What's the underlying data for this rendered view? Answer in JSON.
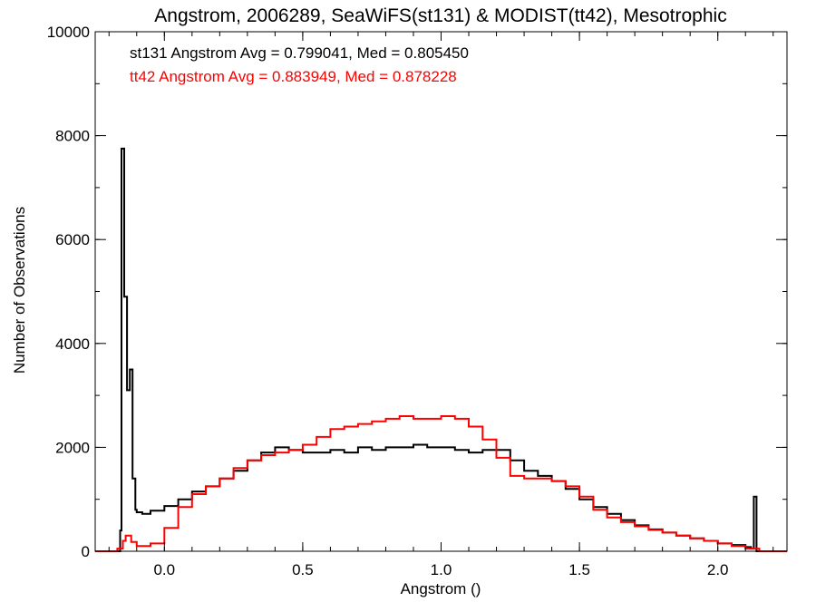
{
  "chart_data": {
    "type": "line",
    "title": "Angstrom, 2006289, SeaWiFS(st131) & MODIST(tt42), Mesotrophic",
    "xlabel": "Angstrom ()",
    "ylabel": "Number of Observations",
    "xlim": [
      -0.25,
      2.25
    ],
    "ylim": [
      0,
      10000
    ],
    "xticks": [
      0.0,
      0.5,
      1.0,
      1.5,
      2.0
    ],
    "xtick_labels": [
      "0.0",
      "0.5",
      "1.0",
      "1.5",
      "2.0"
    ],
    "yticks": [
      0,
      2000,
      4000,
      6000,
      8000,
      10000
    ],
    "ytick_labels": [
      "0",
      "2000",
      "4000",
      "6000",
      "8000",
      "10000"
    ],
    "grid": false,
    "legend": "top-left",
    "annotations": [
      {
        "text": "st131 Angstrom Avg = 0.799041, Med = 0.805450",
        "color": "#000000"
      },
      {
        "text": "tt42 Angstrom Avg = 0.883949, Med = 0.878228",
        "color": "#ff0000"
      }
    ],
    "series": [
      {
        "color": "#000000",
        "style": "step",
        "x": [
          -0.25,
          -0.16,
          -0.155,
          -0.145,
          -0.135,
          -0.125,
          -0.115,
          -0.105,
          -0.1,
          -0.08,
          -0.05,
          0.0,
          0.05,
          0.1,
          0.15,
          0.2,
          0.25,
          0.3,
          0.35,
          0.4,
          0.45,
          0.5,
          0.55,
          0.6,
          0.65,
          0.7,
          0.75,
          0.8,
          0.85,
          0.9,
          0.95,
          1.0,
          1.05,
          1.1,
          1.15,
          1.2,
          1.25,
          1.3,
          1.35,
          1.4,
          1.45,
          1.5,
          1.55,
          1.6,
          1.65,
          1.7,
          1.75,
          1.8,
          1.85,
          1.9,
          1.95,
          2.0,
          2.05,
          2.1,
          2.12,
          2.13,
          2.14,
          2.25
        ],
        "y": [
          0,
          400,
          7750,
          4900,
          3100,
          3500,
          1400,
          800,
          750,
          720,
          780,
          870,
          1000,
          1150,
          1250,
          1400,
          1550,
          1750,
          1900,
          2000,
          1950,
          1900,
          1900,
          1950,
          1900,
          2000,
          1950,
          2000,
          2000,
          2050,
          2000,
          2000,
          1950,
          1900,
          1950,
          1950,
          1750,
          1550,
          1450,
          1350,
          1200,
          1000,
          850,
          720,
          600,
          500,
          420,
          360,
          300,
          250,
          200,
          150,
          120,
          80,
          50,
          1050,
          0,
          0
        ]
      },
      {
        "color": "#ff0000",
        "style": "step",
        "x": [
          -0.25,
          -0.17,
          -0.15,
          -0.14,
          -0.12,
          -0.1,
          -0.05,
          0.0,
          0.05,
          0.1,
          0.15,
          0.2,
          0.25,
          0.3,
          0.35,
          0.4,
          0.45,
          0.5,
          0.55,
          0.6,
          0.65,
          0.7,
          0.75,
          0.8,
          0.85,
          0.9,
          0.95,
          1.0,
          1.05,
          1.1,
          1.15,
          1.2,
          1.25,
          1.3,
          1.35,
          1.4,
          1.45,
          1.5,
          1.55,
          1.6,
          1.65,
          1.7,
          1.75,
          1.8,
          1.85,
          1.9,
          1.95,
          2.0,
          2.05,
          2.1,
          2.15,
          2.25
        ],
        "y": [
          0,
          50,
          200,
          300,
          180,
          100,
          150,
          450,
          850,
          1100,
          1250,
          1400,
          1600,
          1750,
          1850,
          1900,
          1950,
          2050,
          2200,
          2350,
          2400,
          2450,
          2500,
          2550,
          2600,
          2550,
          2550,
          2600,
          2550,
          2400,
          2150,
          1800,
          1450,
          1400,
          1400,
          1350,
          1250,
          1050,
          800,
          650,
          560,
          480,
          410,
          360,
          300,
          250,
          200,
          150,
          100,
          50,
          0,
          0
        ]
      }
    ]
  }
}
